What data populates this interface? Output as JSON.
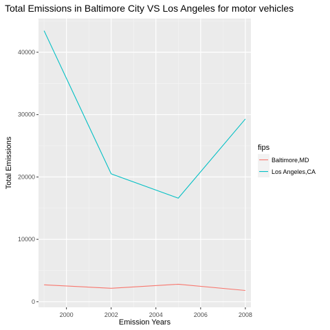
{
  "chart_data": {
    "type": "line",
    "title": "Total Emissions in Baltimore City VS Los Angeles for motor vehicles",
    "xlabel": "Emission Years",
    "ylabel": "Total Emissions",
    "x": [
      1999,
      2002,
      2005,
      2008
    ],
    "xlim": [
      1998.75,
      2008.25
    ],
    "ylim": [
      -900,
      45400
    ],
    "x_ticks": [
      2000,
      2002,
      2004,
      2006,
      2008
    ],
    "y_ticks": [
      0,
      10000,
      20000,
      30000,
      40000
    ],
    "x_tick_labels": [
      "2000",
      "2002",
      "2004",
      "2006",
      "2008"
    ],
    "y_tick_labels": [
      "0",
      "10000",
      "20000",
      "30000",
      "40000"
    ],
    "grid": true,
    "legend": {
      "title": "fips",
      "position": "right"
    },
    "series": [
      {
        "name": "Baltimore,MD",
        "color": "#F8766D",
        "values": [
          2700,
          2150,
          2800,
          1800
        ]
      },
      {
        "name": "Los Angeles,CA",
        "color": "#00BFC4",
        "values": [
          43450,
          20500,
          16600,
          29300
        ]
      }
    ]
  }
}
